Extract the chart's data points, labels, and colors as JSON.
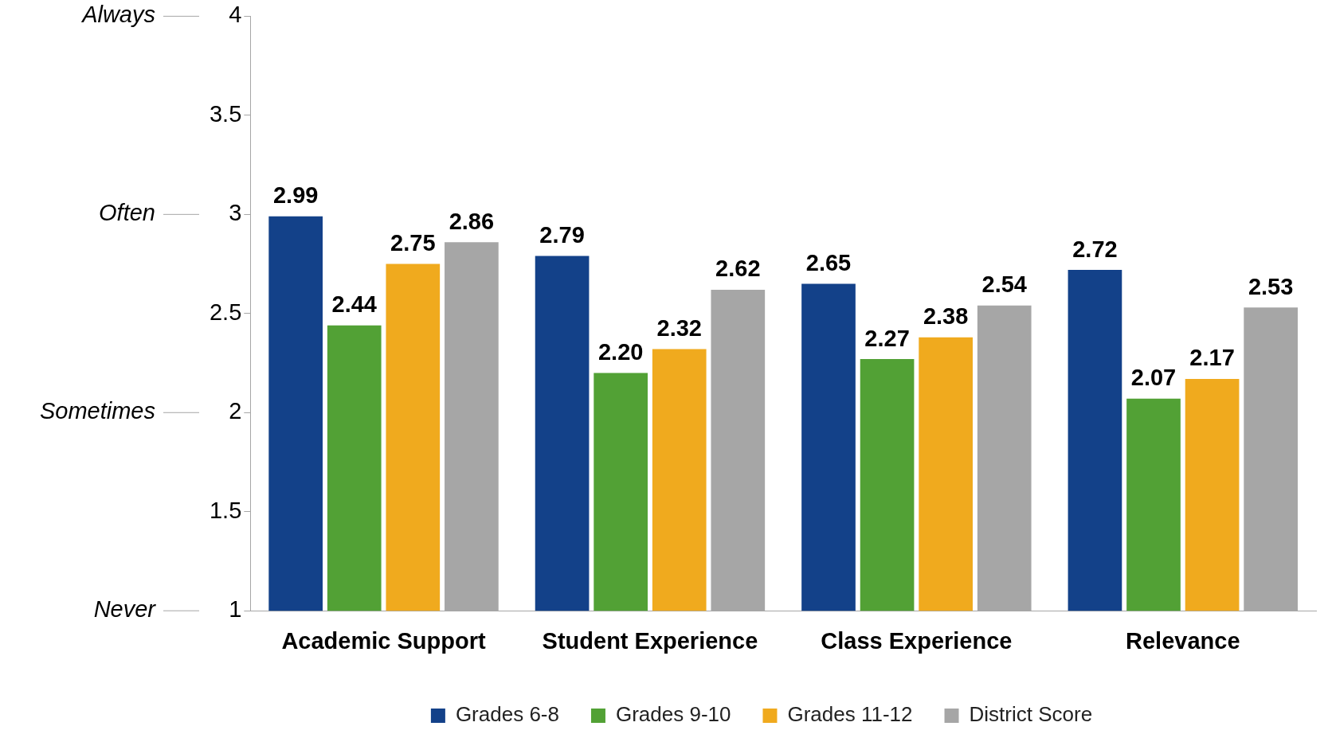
{
  "chart_data": {
    "type": "bar",
    "categories": [
      "Academic Support",
      "Student Experience",
      "Class Experience",
      "Relevance"
    ],
    "series": [
      {
        "name": "Grades 6-8",
        "color": "#134189",
        "values": [
          2.99,
          2.79,
          2.65,
          2.72
        ],
        "value_labels": [
          "2.99",
          "2.79",
          "2.65",
          "2.72"
        ]
      },
      {
        "name": "Grades 9-10",
        "color": "#52a135",
        "values": [
          2.44,
          2.2,
          2.27,
          2.07
        ],
        "value_labels": [
          "2.44",
          "2.20",
          "2.27",
          "2.07"
        ]
      },
      {
        "name": "Grades 11-12",
        "color": "#f0aa1e",
        "values": [
          2.75,
          2.32,
          2.38,
          2.17
        ],
        "value_labels": [
          "2.75",
          "2.32",
          "2.38",
          "2.17"
        ]
      },
      {
        "name": "District Score",
        "color": "#a6a6a6",
        "values": [
          2.86,
          2.62,
          2.54,
          2.53
        ],
        "value_labels": [
          "2.86",
          "2.62",
          "2.54",
          "2.53"
        ]
      }
    ],
    "ylim": [
      1,
      4
    ],
    "yticks": [
      1,
      1.5,
      2,
      2.5,
      3,
      3.5,
      4
    ],
    "annotations": [
      "Always",
      "Often",
      "Sometimes",
      "Never"
    ],
    "grid": false,
    "legend": "bottom"
  }
}
